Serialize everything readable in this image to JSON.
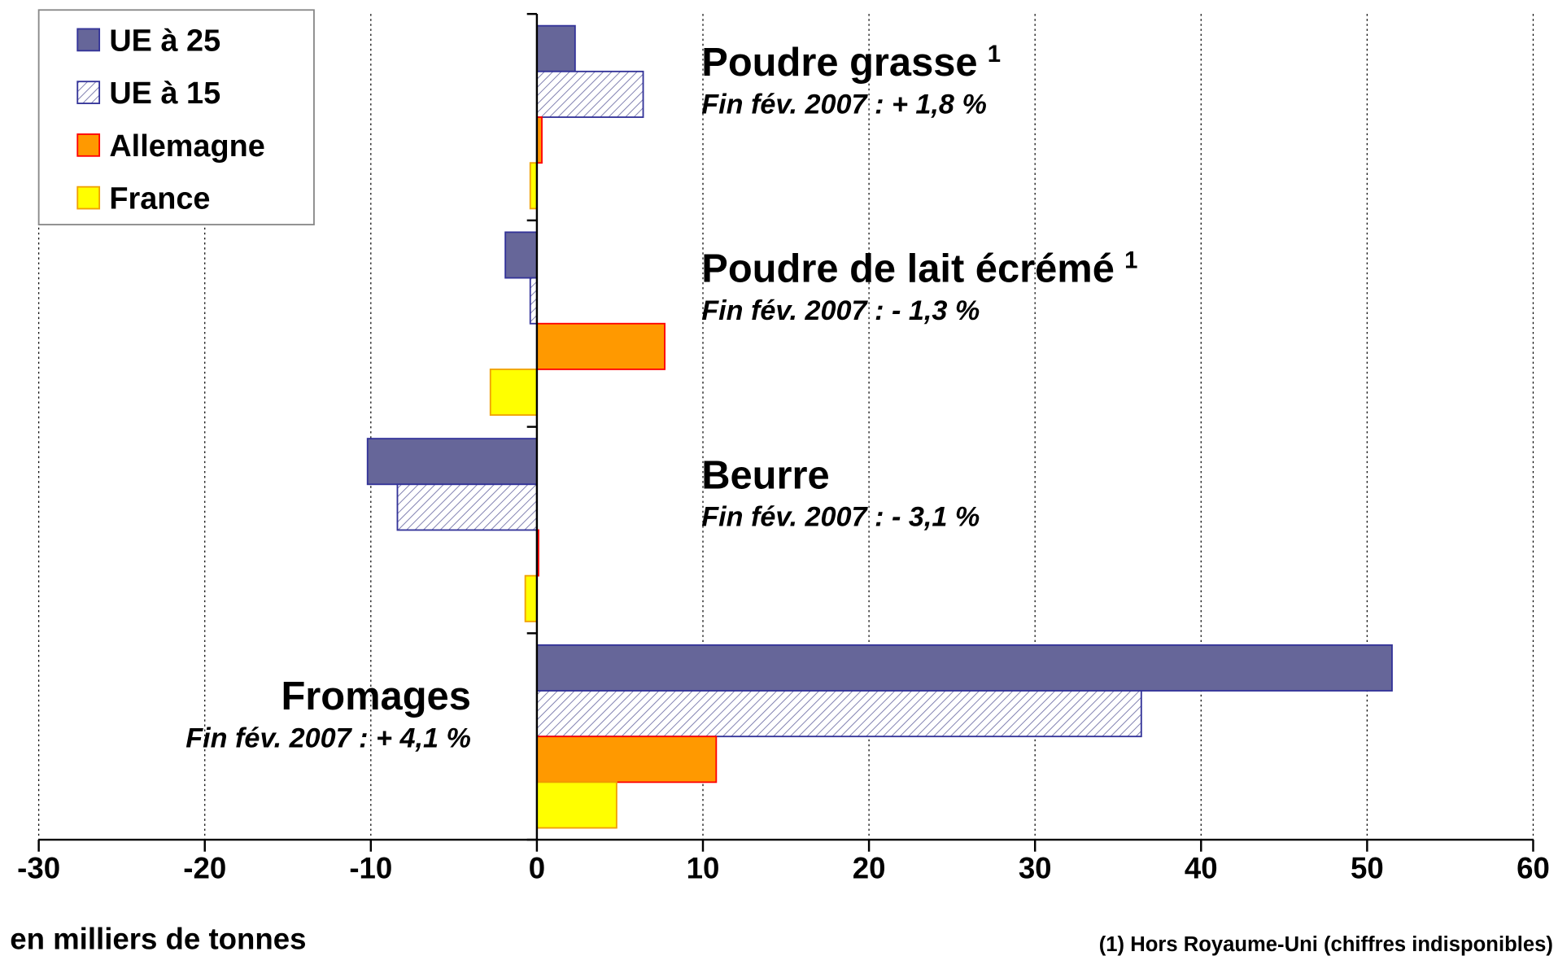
{
  "chart_data": {
    "type": "hbar",
    "categories": [
      "Poudre grasse",
      "Poudre de lait écrémé",
      "Beurre",
      "Fromages"
    ],
    "category_footnote_marks": [
      "1",
      "1",
      null,
      null
    ],
    "category_notes": [
      "Fin fév. 2007 : + 1,8 %",
      "Fin fév. 2007 : - 1,3 %",
      "Fin fév. 2007 : - 3,1 %",
      "Fin fév. 2007 : + 4,1 %"
    ],
    "series": [
      {
        "name": "UE à 25",
        "color": "#666699",
        "edge": "#333399",
        "values": [
          2.3,
          -1.9,
          -10.2,
          51.5
        ]
      },
      {
        "name": "UE à 15",
        "color": "#ffffff",
        "edge": "#333399",
        "pattern": "hatch",
        "values": [
          6.4,
          -0.4,
          -8.4,
          36.4
        ]
      },
      {
        "name": "Allemagne",
        "color": "#ff9900",
        "edge": "#ff0000",
        "values": [
          0.3,
          7.7,
          0.1,
          10.8
        ]
      },
      {
        "name": "France",
        "color": "#ffff00",
        "edge": "#f0a000",
        "values": [
          -0.4,
          -2.8,
          -0.7,
          4.8
        ]
      }
    ],
    "xlim": [
      -30,
      60
    ],
    "xticks": [
      -30,
      -20,
      -10,
      0,
      10,
      20,
      30,
      40,
      50,
      60
    ],
    "xlabel": "en milliers de tonnes",
    "footnote": "(1) Hors Royaume-Uni (chiffres indisponibles)",
    "grid": true,
    "legend": "upper left"
  }
}
